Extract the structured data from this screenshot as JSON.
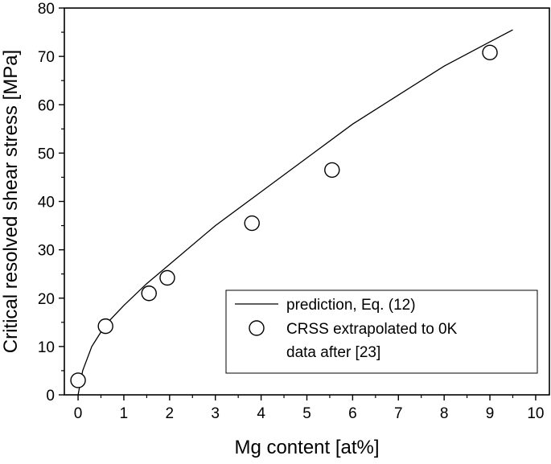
{
  "chart_data": {
    "type": "scatter",
    "title": "",
    "xlabel": "Mg content [at%]",
    "ylabel": "Critical resolved shear stress [MPa]",
    "xlim": [
      -0.3,
      10.3
    ],
    "ylim": [
      0,
      80
    ],
    "xticks": [
      "0",
      "1",
      "2",
      "3",
      "4",
      "5",
      "6",
      "7",
      "8",
      "9",
      "10"
    ],
    "yticks": [
      "0",
      "10",
      "20",
      "30",
      "40",
      "50",
      "60",
      "70",
      "80"
    ],
    "grid": false,
    "legend_position": "bottom-right",
    "series": [
      {
        "name": "prediction, Eq. (12)",
        "kind": "line",
        "color": "#000000",
        "x": [
          0,
          0.1,
          0.3,
          0.6,
          1.0,
          1.5,
          2.0,
          3.0,
          4.0,
          5.0,
          6.0,
          7.0,
          8.0,
          9.0,
          9.5
        ],
        "y": [
          0,
          5,
          10,
          14.5,
          18.5,
          23,
          27,
          35,
          42,
          49,
          56,
          62,
          68,
          73,
          75.5
        ]
      },
      {
        "name": "CRSS extrapolated to 0K",
        "kind": "scatter",
        "marker": "open-circle",
        "color": "#000000",
        "x": [
          0,
          0.6,
          1.55,
          1.95,
          3.8,
          5.55,
          9.0
        ],
        "y": [
          3,
          14.2,
          21,
          24.2,
          35.5,
          46.5,
          70.8
        ]
      }
    ],
    "legend_note": "data after [23]"
  }
}
